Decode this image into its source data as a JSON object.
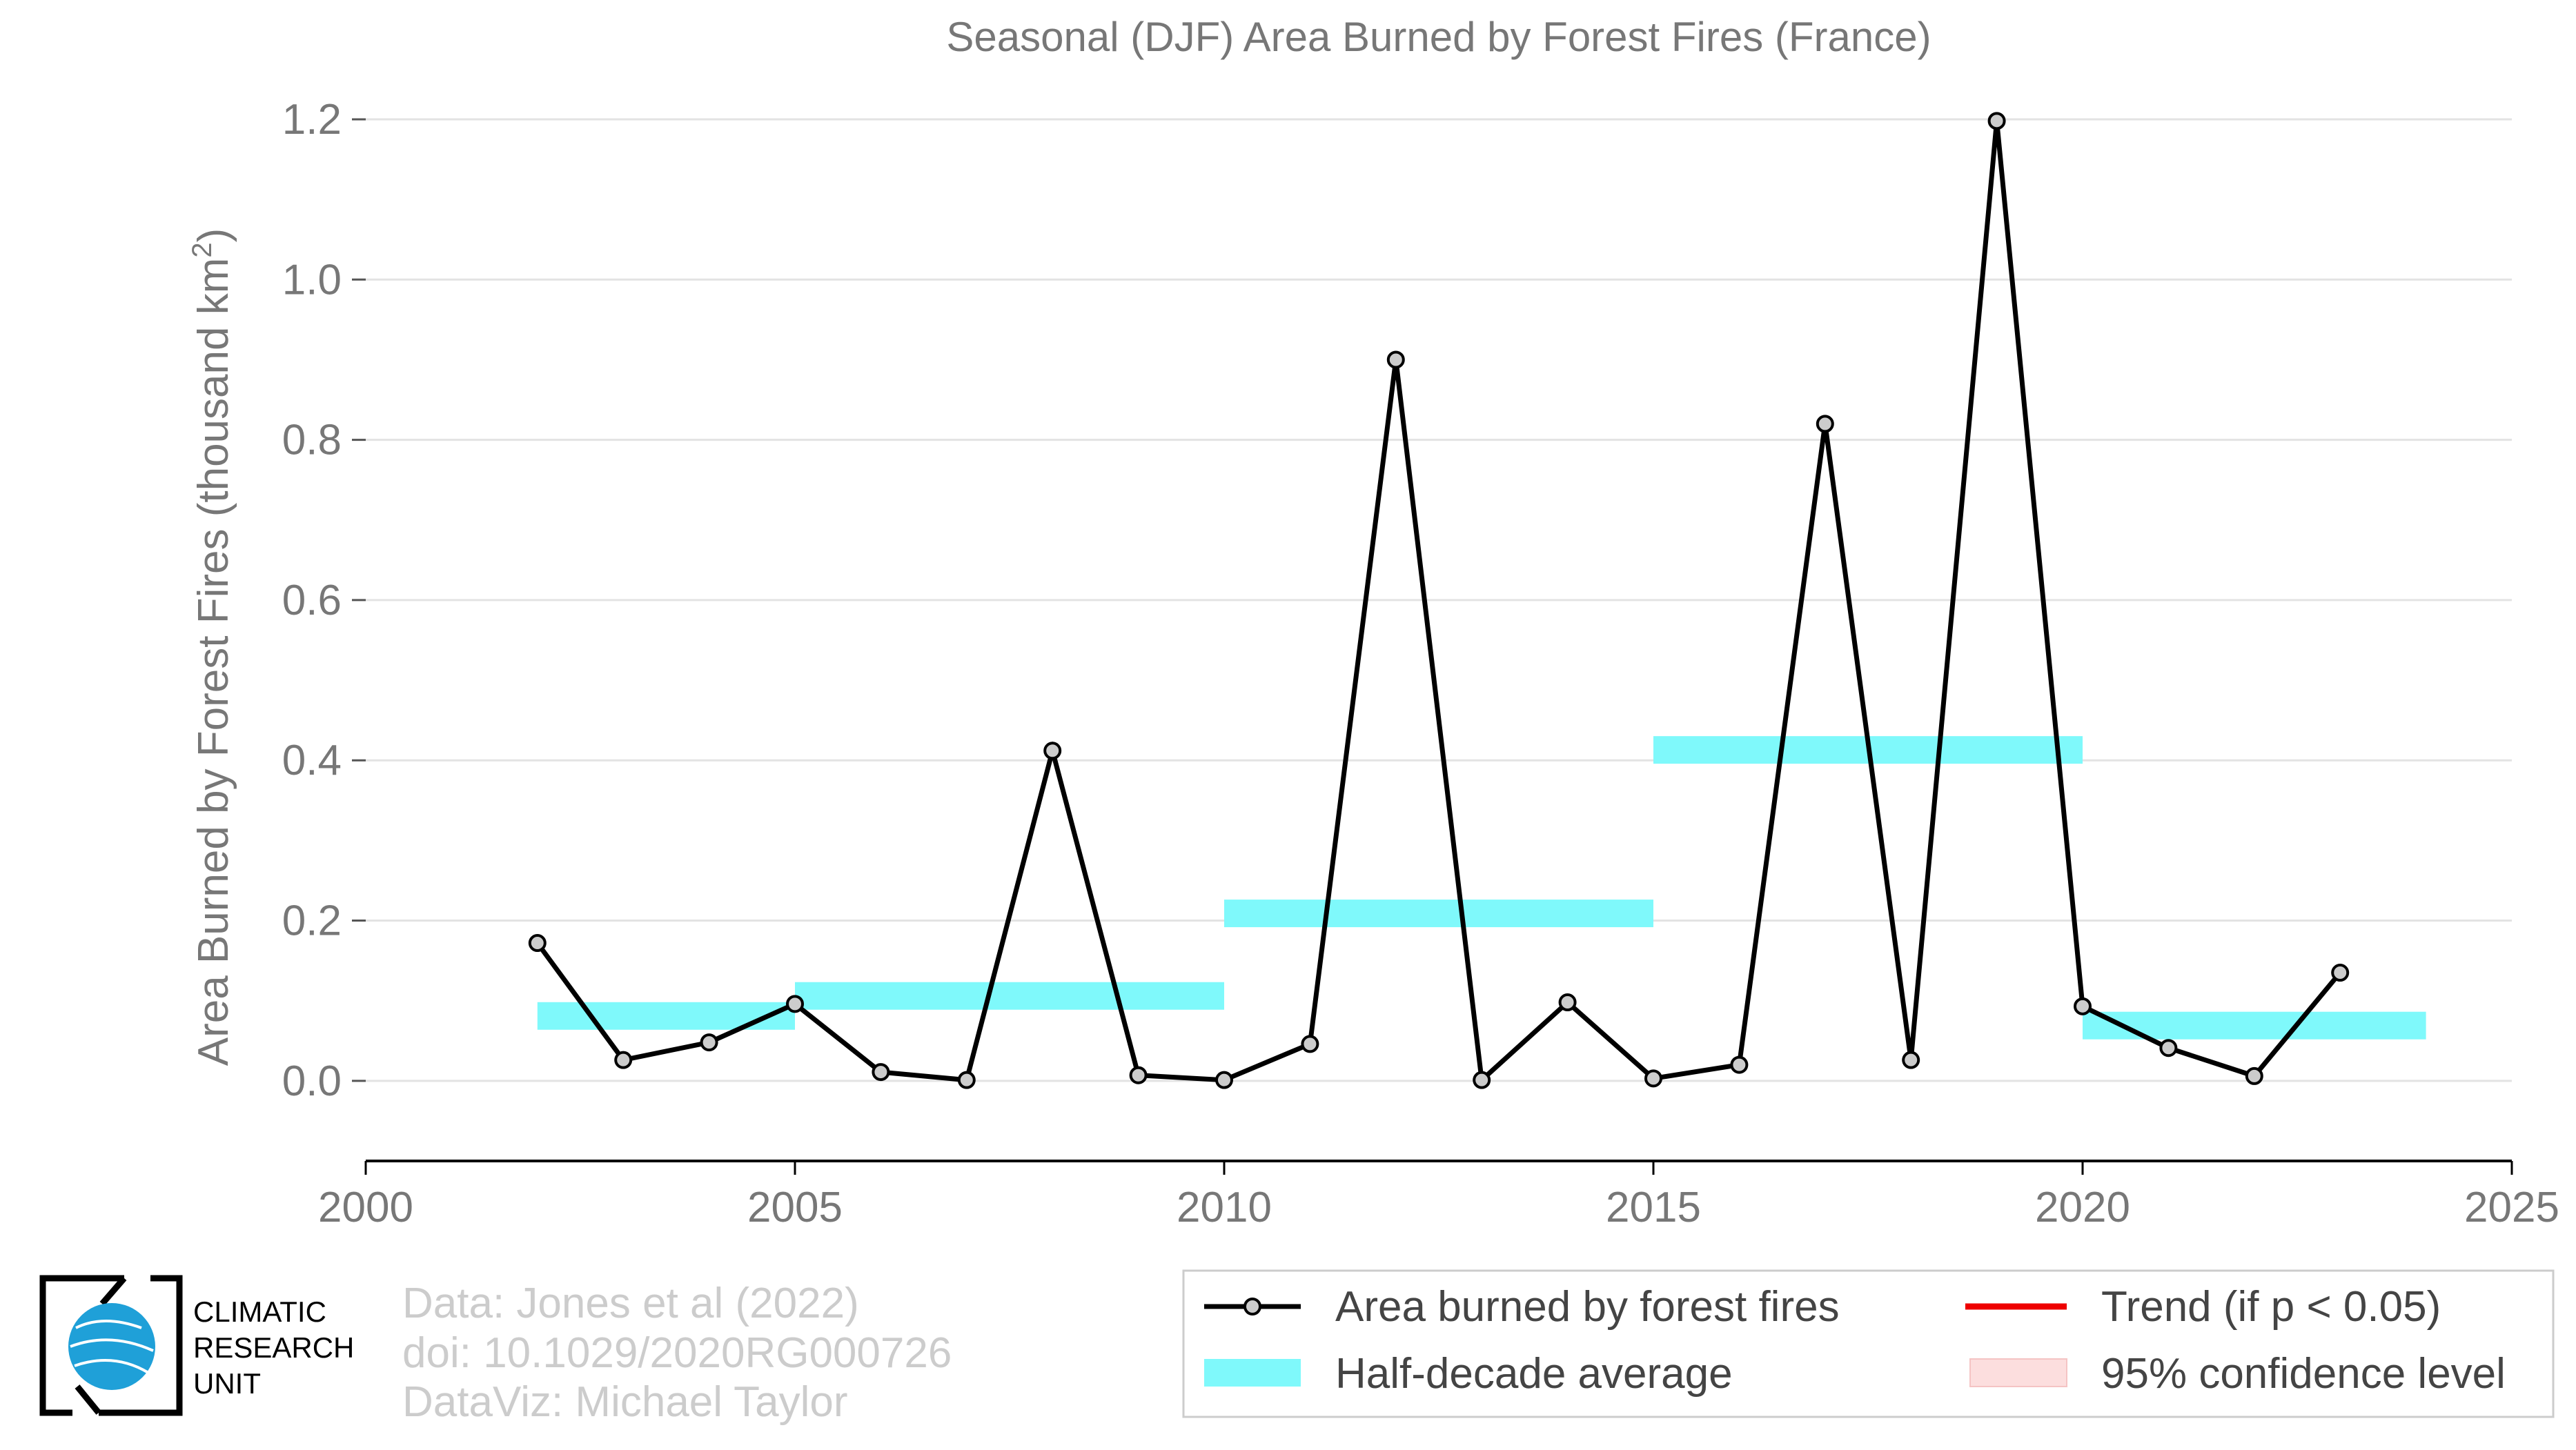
{
  "chart_data": {
    "type": "line",
    "title": "Seasonal (DJF) Area Burned by Forest Fires (France)",
    "xlabel": "",
    "ylabel": "Area Burned by Forest Fires (thousand km",
    "ylabel_sup": "2",
    "ylabel_close": ")",
    "xlim": [
      2000,
      2025
    ],
    "ylim": [
      -0.1,
      1.2
    ],
    "x_ticks": [
      2000,
      2005,
      2010,
      2015,
      2020,
      2025
    ],
    "y_ticks": [
      0.0,
      0.2,
      0.4,
      0.6,
      0.8,
      1.0,
      1.2
    ],
    "y_tick_labels": [
      "0.0",
      "0.2",
      "0.4",
      "0.6",
      "0.8",
      "1.0",
      "1.2"
    ],
    "grid": "horizontal",
    "series": [
      {
        "name": "Area burned by forest fires",
        "color": "#000000",
        "marker_fill": "#cccccc",
        "x": [
          2002,
          2003,
          2004,
          2005,
          2006,
          2007,
          2008,
          2009,
          2010,
          2011,
          2012,
          2013,
          2014,
          2015,
          2016,
          2017,
          2018,
          2019,
          2020,
          2021,
          2022,
          2023
        ],
        "values": [
          0.172,
          0.026,
          0.048,
          0.096,
          0.011,
          0.001,
          0.412,
          0.007,
          0.001,
          0.046,
          0.9,
          0.001,
          0.098,
          0.003,
          0.02,
          0.82,
          0.026,
          1.198,
          0.093,
          0.041,
          0.006,
          0.135
        ]
      }
    ],
    "half_decade_average": {
      "name": "Half-decade average",
      "color": "#7ff9fb",
      "segments": [
        {
          "x0": 2002,
          "x1": 2005,
          "value": 0.081
        },
        {
          "x0": 2005,
          "x1": 2010,
          "value": 0.106
        },
        {
          "x0": 2010,
          "x1": 2015,
          "value": 0.209
        },
        {
          "x0": 2015,
          "x1": 2020,
          "value": 0.413
        },
        {
          "x0": 2020,
          "x1": 2024,
          "value": 0.069
        }
      ]
    },
    "legend": {
      "placement": "bottom-right",
      "items": [
        {
          "label": "Area burned by forest fires",
          "kind": "line-marker",
          "color": "#000000"
        },
        {
          "label": "Trend (if p < 0.05)",
          "kind": "line",
          "color": "#ee0000"
        },
        {
          "label": "Half-decade average",
          "kind": "band",
          "color": "#7ff9fb"
        },
        {
          "label": "95% confidence level",
          "kind": "band",
          "color": "#fcdede"
        }
      ]
    }
  },
  "credits": {
    "line1": "Data: Jones et al (2022)",
    "line2": "doi: 10.1029/2020RG000726",
    "line3": "DataViz: Michael Taylor"
  },
  "logo": {
    "line1": "CLIMATIC",
    "line2": "RESEARCH",
    "line3": "UNIT",
    "color": "#1fa0d8"
  }
}
